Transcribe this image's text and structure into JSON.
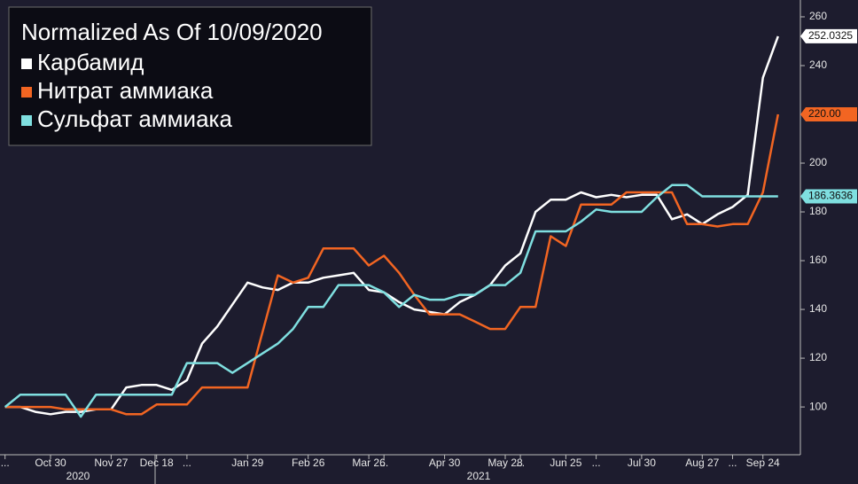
{
  "chart_data": {
    "type": "line",
    "title": "Normalized As Of 10/09/2020",
    "categories": [
      "...",
      null,
      null,
      "Oct 30",
      null,
      null,
      null,
      "Nov 27",
      null,
      null,
      "Dec 18",
      null,
      "...",
      null,
      null,
      null,
      "Jan 29",
      null,
      null,
      null,
      "Feb 26",
      null,
      null,
      null,
      "Mar 26",
      "...",
      null,
      null,
      null,
      "Apr 30",
      null,
      null,
      null,
      "May 28",
      "...",
      null,
      null,
      "Jun 25",
      null,
      "...",
      null,
      null,
      "Jul 30",
      null,
      null,
      null,
      "Aug 27",
      null,
      "...",
      null,
      "Sep 24",
      null
    ],
    "years": [
      "2020",
      "2021"
    ],
    "ylim": [
      80.4,
      266.9
    ],
    "yticks": [
      100,
      120,
      140,
      160,
      180,
      200,
      220,
      240,
      260
    ],
    "series": [
      {
        "name": "Карбамид",
        "color": "#ffffff",
        "values": [
          100,
          100,
          98,
          97,
          98,
          98,
          99,
          99,
          108,
          109,
          109,
          107,
          111,
          126,
          133,
          142,
          151,
          149,
          148,
          151,
          151,
          153,
          154,
          155,
          148,
          147,
          143,
          140,
          139,
          138,
          143,
          146,
          150,
          158,
          163,
          180,
          185,
          185,
          188,
          186,
          187,
          186,
          187,
          187,
          177,
          179,
          175,
          179,
          182,
          187,
          235,
          252.0325
        ]
      },
      {
        "name": "Нитрат аммиака",
        "color": "#f26522",
        "values": [
          100,
          100,
          100,
          100,
          99,
          99,
          99,
          99,
          97,
          97,
          101,
          101,
          101,
          108,
          108,
          108,
          108,
          131,
          154,
          151,
          153,
          165,
          165,
          165,
          158,
          162,
          155,
          146,
          138,
          138,
          138,
          135,
          132,
          132,
          141,
          141,
          170,
          166,
          183,
          183,
          183,
          188,
          188,
          188,
          188,
          175,
          175,
          174,
          175,
          175,
          188,
          220
        ],
        "value_labels": [
          null,
          null,
          null,
          null,
          null,
          null,
          null,
          null,
          null,
          null,
          null,
          null,
          null,
          null,
          null,
          null,
          null,
          null,
          null,
          null,
          null,
          null,
          null,
          null,
          null,
          null,
          null,
          null,
          null,
          null,
          null,
          null,
          null,
          null,
          null,
          null,
          null,
          null,
          null,
          null,
          null,
          null,
          null,
          null,
          null,
          null,
          null,
          null,
          null,
          null,
          null,
          "220.00"
        ]
      },
      {
        "name": "Сульфат аммиака",
        "color": "#7fdfe0",
        "values": [
          100,
          105,
          105,
          105,
          105,
          96,
          105,
          105,
          105,
          105,
          105,
          105,
          118,
          118,
          118,
          114,
          118,
          122,
          126,
          132,
          141,
          141,
          150,
          150,
          150,
          147,
          141,
          146,
          144,
          144,
          146,
          146,
          150,
          150,
          155,
          172,
          172,
          172,
          176,
          181,
          180,
          180,
          180,
          186,
          191,
          191,
          186.3636,
          186.3636,
          186.3636,
          186.3636,
          186.3636,
          186.3636
        ]
      }
    ]
  }
}
